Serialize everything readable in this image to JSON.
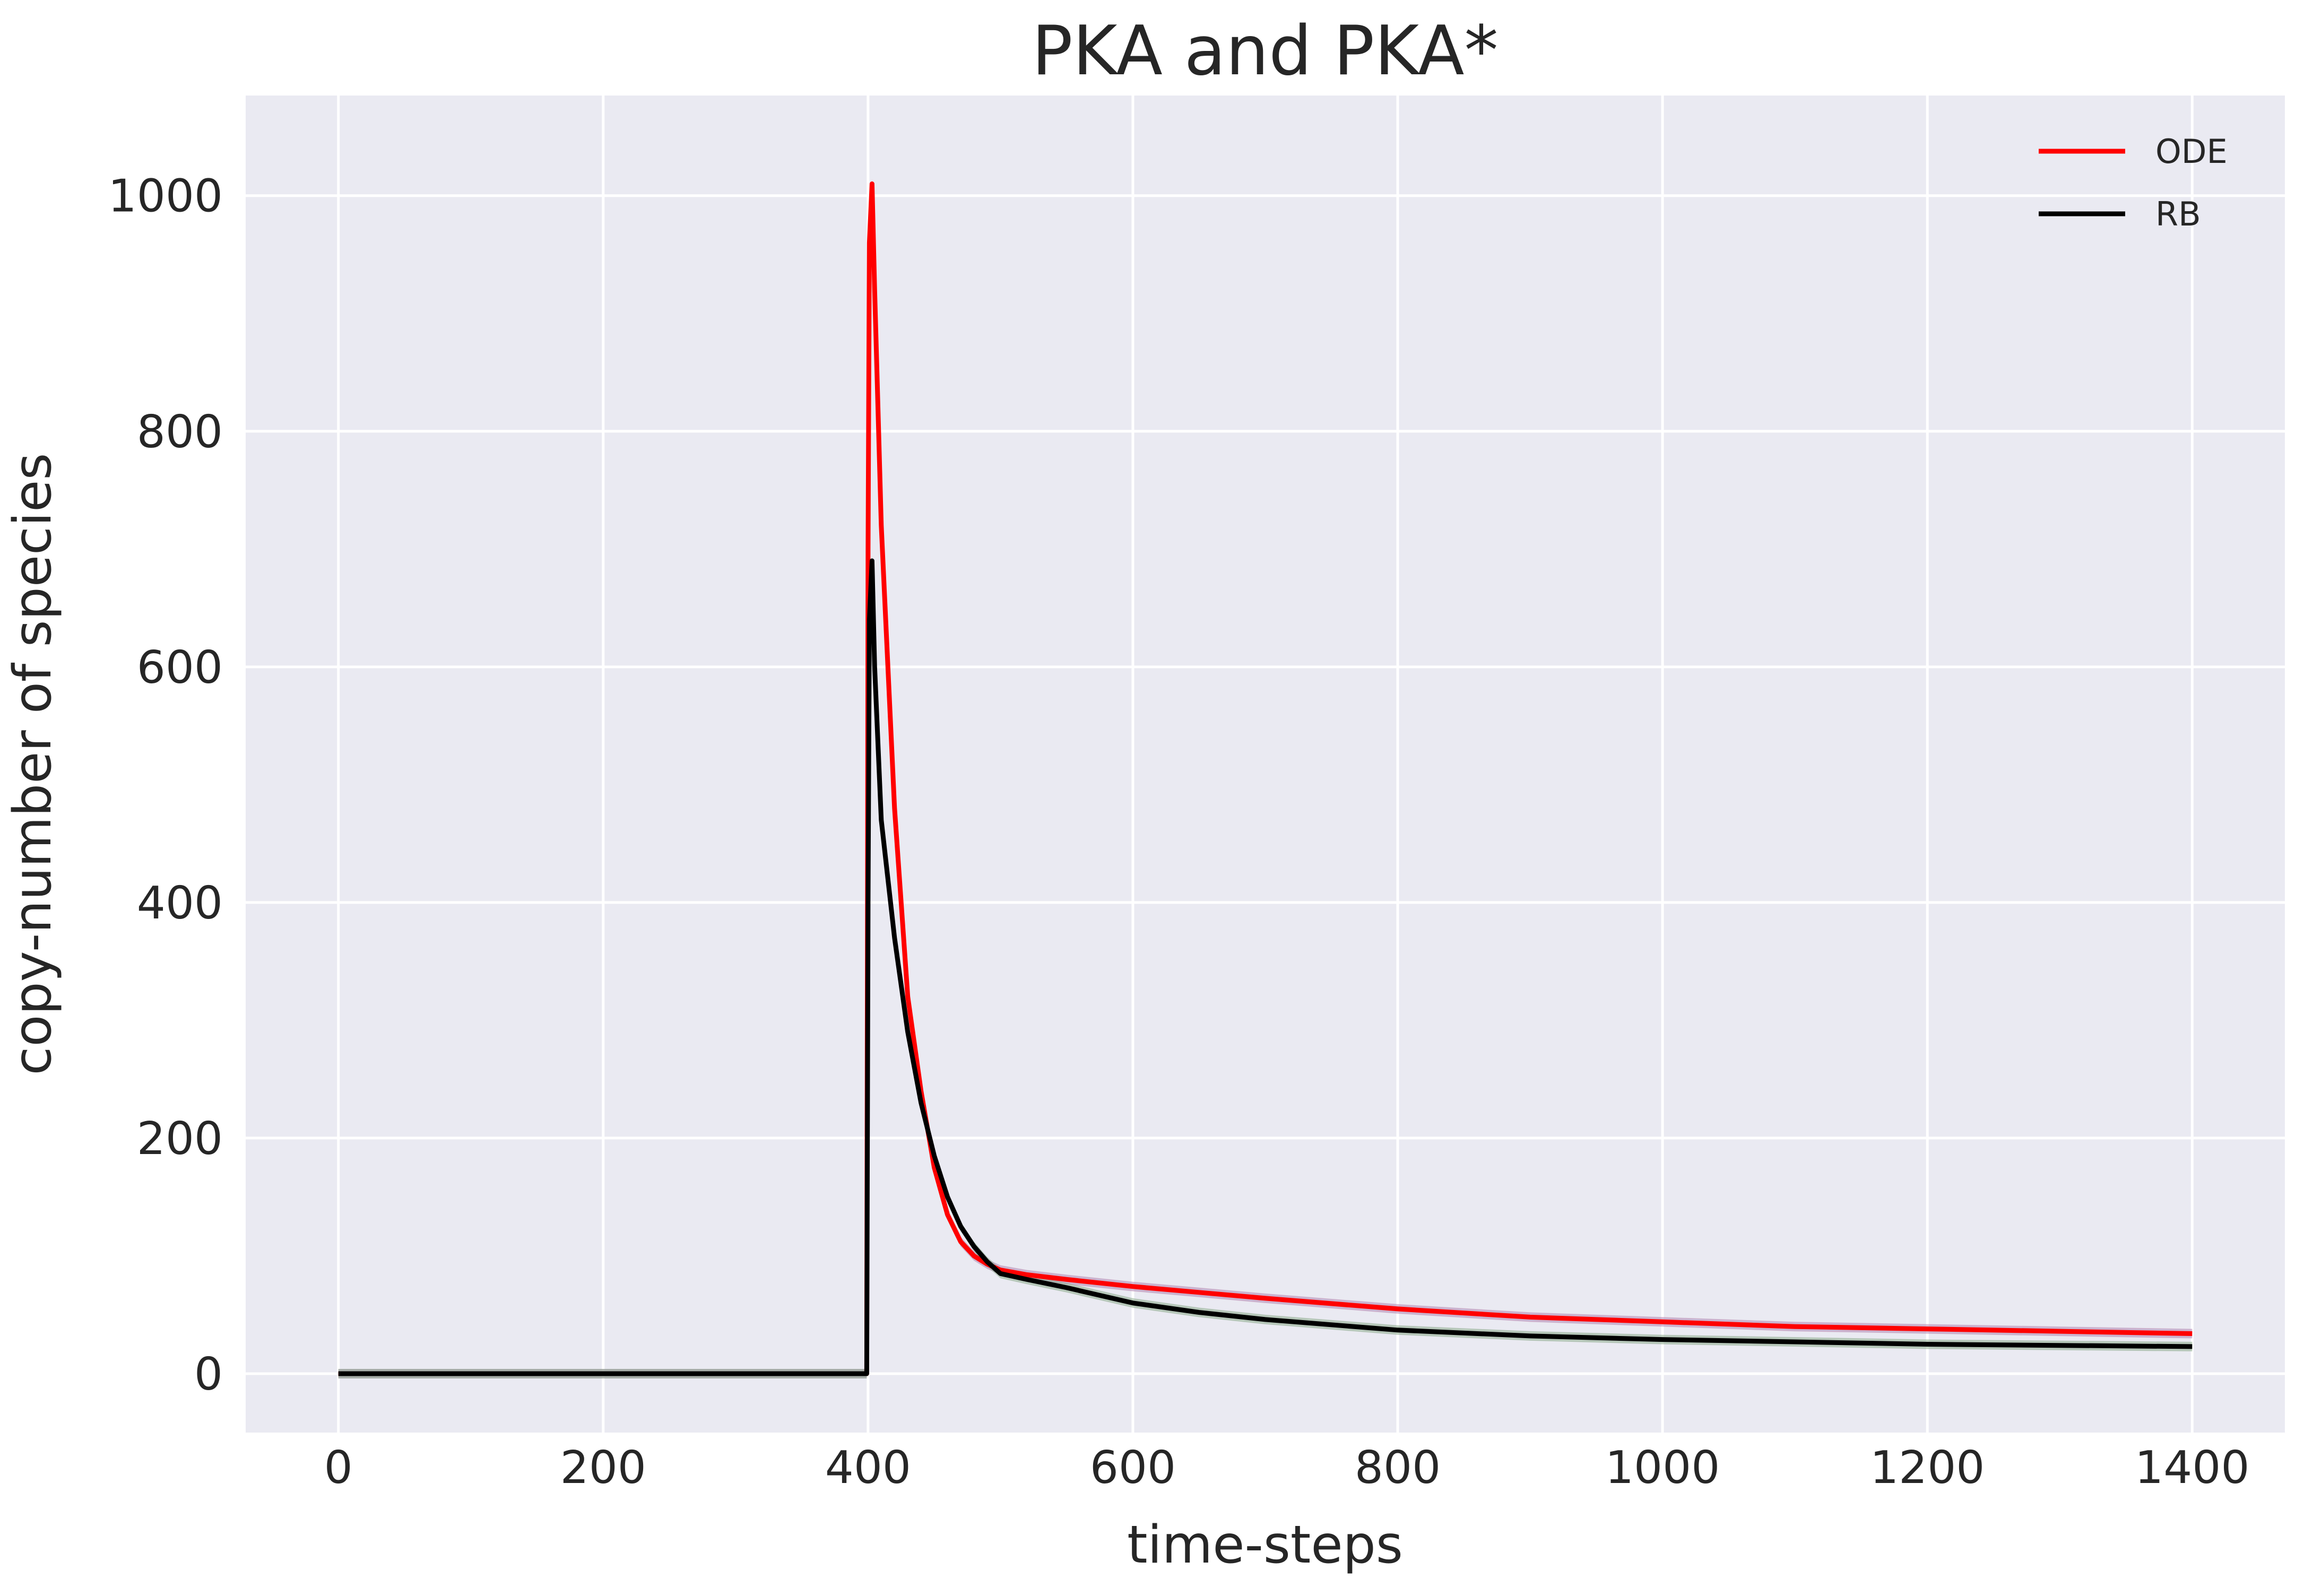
{
  "chart_data": {
    "type": "line",
    "title": "PKA and PKA*",
    "xlabel": "time-steps",
    "ylabel": "copy-number of species",
    "xlim": [
      -70,
      1470
    ],
    "ylim": [
      -50,
      1085
    ],
    "xticks": [
      0,
      200,
      400,
      600,
      800,
      1000,
      1200,
      1400
    ],
    "yticks": [
      0,
      200,
      400,
      600,
      800,
      1000
    ],
    "grid": true,
    "legend_position": "top-right",
    "background": "#eaeaf2",
    "series": [
      {
        "name": "ODE",
        "color": "#ff0000",
        "band_color": "#b083b0",
        "x": [
          0,
          399,
          400,
          401,
          403,
          405,
          410,
          420,
          430,
          440,
          450,
          460,
          470,
          480,
          490,
          500,
          520,
          550,
          600,
          650,
          700,
          800,
          900,
          1000,
          1100,
          1200,
          1300,
          1400
        ],
        "y": [
          0,
          0,
          700,
          960,
          1010,
          920,
          720,
          480,
          320,
          240,
          175,
          135,
          112,
          100,
          93,
          88,
          84,
          80,
          74,
          69,
          64,
          55,
          48,
          44,
          40,
          38,
          36,
          34
        ]
      },
      {
        "name": "RB",
        "color": "#000000",
        "band_color": "#8aaa8a",
        "x": [
          0,
          399,
          400,
          401,
          403,
          405,
          410,
          420,
          430,
          440,
          450,
          460,
          470,
          480,
          490,
          500,
          520,
          550,
          600,
          650,
          700,
          800,
          900,
          1000,
          1100,
          1200,
          1300,
          1400
        ],
        "y": [
          0,
          0,
          400,
          640,
          690,
          600,
          470,
          370,
          290,
          230,
          185,
          150,
          125,
          108,
          95,
          85,
          80,
          73,
          60,
          52,
          46,
          37,
          32,
          29,
          27,
          25,
          24,
          23
        ]
      }
    ]
  }
}
